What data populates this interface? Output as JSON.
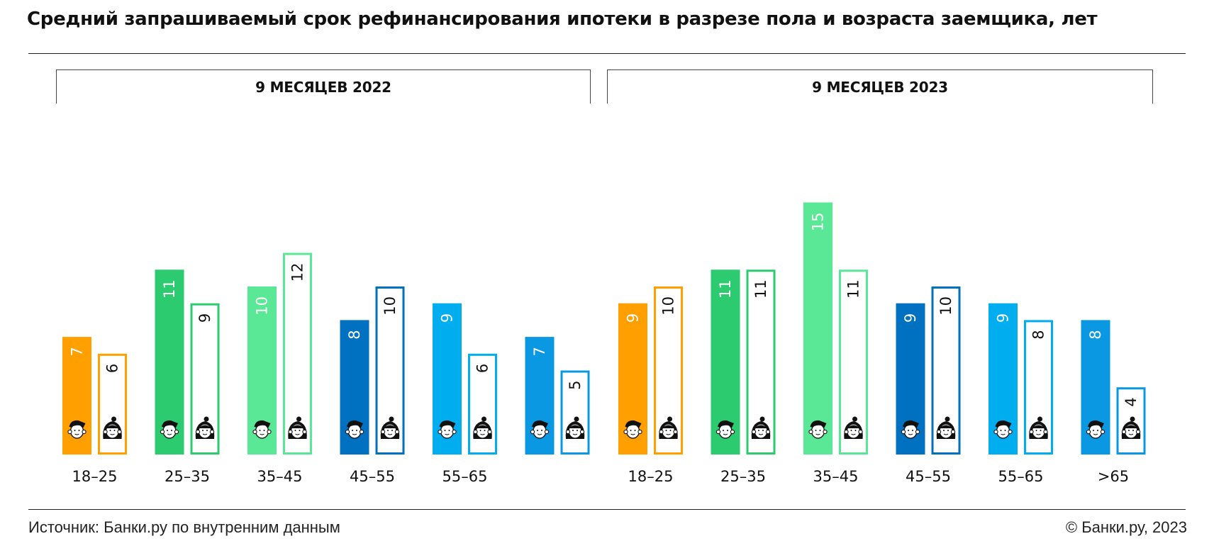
{
  "title": "Средний запрашиваемый срок рефинансирования ипотеки в разрезе пола и возраста заемщика, лет",
  "source": "Источник: Банки.ру по внутренним данным",
  "copyright": "© Банки.ру, 2023",
  "colors": {
    "orange": "#FF9F00",
    "green": "#2DCB70",
    "light_green": "#5BE896",
    "dark_blue": "#0070C0",
    "cyan": "#00AEEF",
    "blue": "#0A98E2"
  },
  "chart_data": {
    "type": "bar",
    "panels": [
      {
        "label": "9 МЕСЯЦЕВ 2022",
        "categories": [
          "18–25",
          "25–35",
          "35–45",
          "45–55",
          "55–65",
          ""
        ],
        "series": [
          {
            "gender": "male",
            "style": "filled",
            "values": [
              7,
              11,
              10,
              8,
              9,
              7
            ]
          },
          {
            "gender": "female",
            "style": "outline",
            "values": [
              6,
              9,
              12,
              10,
              6,
              5
            ]
          }
        ]
      },
      {
        "label": "9 МЕСЯЦЕВ 2023",
        "categories": [
          "18–25",
          "25–35",
          "35–45",
          "45–55",
          "55–65",
          ">65"
        ],
        "series": [
          {
            "gender": "male",
            "style": "filled",
            "values": [
              9,
              11,
              15,
              9,
              9,
              8
            ]
          },
          {
            "gender": "female",
            "style": "outline",
            "values": [
              10,
              11,
              11,
              10,
              8,
              4
            ]
          }
        ]
      }
    ],
    "group_colors": [
      "#FF9F00",
      "#2DCB70",
      "#5BE896",
      "#0070C0",
      "#00AEEF",
      "#0A98E2"
    ],
    "icons": [
      "male-avatar-icon",
      "female-avatar-icon"
    ]
  }
}
